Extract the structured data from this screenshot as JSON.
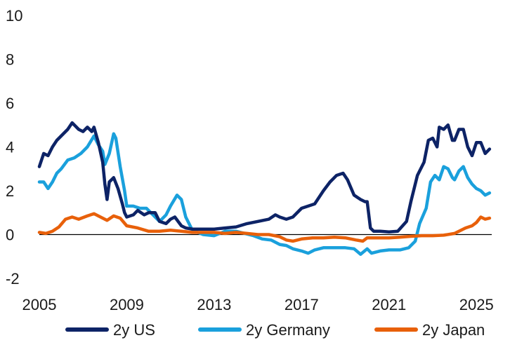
{
  "chart_data": {
    "type": "line",
    "title": "",
    "xlabel": "",
    "ylabel": "",
    "xlim": [
      2005,
      2025.7
    ],
    "ylim": [
      -2,
      10
    ],
    "x_ticks": [
      2005,
      2009,
      2013,
      2017,
      2021,
      2025
    ],
    "y_ticks": [
      -2,
      0,
      2,
      4,
      6,
      8,
      10
    ],
    "grid": false,
    "zero_line": true,
    "legend_position": "bottom",
    "series": [
      {
        "name": "2y US",
        "color": "#0d2366",
        "points": [
          [
            2005.0,
            3.1
          ],
          [
            2005.2,
            3.7
          ],
          [
            2005.4,
            3.6
          ],
          [
            2005.6,
            4.0
          ],
          [
            2005.8,
            4.3
          ],
          [
            2006.0,
            4.5
          ],
          [
            2006.3,
            4.8
          ],
          [
            2006.5,
            5.1
          ],
          [
            2006.8,
            4.8
          ],
          [
            2007.0,
            4.7
          ],
          [
            2007.2,
            4.9
          ],
          [
            2007.4,
            4.7
          ],
          [
            2007.5,
            4.9
          ],
          [
            2007.7,
            4.2
          ],
          [
            2007.9,
            3.3
          ],
          [
            2008.0,
            2.3
          ],
          [
            2008.1,
            1.6
          ],
          [
            2008.2,
            2.4
          ],
          [
            2008.4,
            2.6
          ],
          [
            2008.6,
            2.1
          ],
          [
            2008.8,
            1.4
          ],
          [
            2008.9,
            1.0
          ],
          [
            2009.0,
            0.8
          ],
          [
            2009.3,
            0.9
          ],
          [
            2009.5,
            1.1
          ],
          [
            2009.8,
            0.9
          ],
          [
            2010.0,
            1.0
          ],
          [
            2010.3,
            1.0
          ],
          [
            2010.5,
            0.6
          ],
          [
            2010.8,
            0.5
          ],
          [
            2011.0,
            0.7
          ],
          [
            2011.2,
            0.8
          ],
          [
            2011.5,
            0.4
          ],
          [
            2011.7,
            0.3
          ],
          [
            2012.0,
            0.25
          ],
          [
            2012.5,
            0.25
          ],
          [
            2013.0,
            0.25
          ],
          [
            2013.5,
            0.3
          ],
          [
            2014.0,
            0.35
          ],
          [
            2014.5,
            0.5
          ],
          [
            2015.0,
            0.6
          ],
          [
            2015.5,
            0.7
          ],
          [
            2015.8,
            0.9
          ],
          [
            2016.0,
            0.8
          ],
          [
            2016.3,
            0.7
          ],
          [
            2016.6,
            0.8
          ],
          [
            2017.0,
            1.2
          ],
          [
            2017.3,
            1.3
          ],
          [
            2017.6,
            1.4
          ],
          [
            2018.0,
            2.0
          ],
          [
            2018.3,
            2.4
          ],
          [
            2018.6,
            2.7
          ],
          [
            2018.9,
            2.8
          ],
          [
            2019.1,
            2.5
          ],
          [
            2019.4,
            1.8
          ],
          [
            2019.7,
            1.6
          ],
          [
            2019.9,
            1.5
          ],
          [
            2020.0,
            1.5
          ],
          [
            2020.15,
            0.3
          ],
          [
            2020.3,
            0.15
          ],
          [
            2020.6,
            0.15
          ],
          [
            2021.0,
            0.12
          ],
          [
            2021.4,
            0.15
          ],
          [
            2021.8,
            0.6
          ],
          [
            2022.0,
            1.5
          ],
          [
            2022.3,
            2.7
          ],
          [
            2022.6,
            3.3
          ],
          [
            2022.8,
            4.3
          ],
          [
            2023.0,
            4.4
          ],
          [
            2023.2,
            4.0
          ],
          [
            2023.3,
            4.9
          ],
          [
            2023.5,
            4.8
          ],
          [
            2023.7,
            5.0
          ],
          [
            2023.9,
            4.3
          ],
          [
            2024.0,
            4.3
          ],
          [
            2024.2,
            4.8
          ],
          [
            2024.4,
            4.8
          ],
          [
            2024.6,
            4.0
          ],
          [
            2024.8,
            3.6
          ],
          [
            2025.0,
            4.2
          ],
          [
            2025.2,
            4.2
          ],
          [
            2025.4,
            3.7
          ],
          [
            2025.6,
            3.9
          ]
        ]
      },
      {
        "name": "2y Germany",
        "color": "#1aa0dc",
        "points": [
          [
            2005.0,
            2.4
          ],
          [
            2005.2,
            2.4
          ],
          [
            2005.4,
            2.1
          ],
          [
            2005.6,
            2.4
          ],
          [
            2005.8,
            2.8
          ],
          [
            2006.0,
            3.0
          ],
          [
            2006.3,
            3.4
          ],
          [
            2006.6,
            3.5
          ],
          [
            2006.9,
            3.7
          ],
          [
            2007.2,
            4.0
          ],
          [
            2007.5,
            4.5
          ],
          [
            2007.7,
            4.1
          ],
          [
            2007.9,
            3.8
          ],
          [
            2008.0,
            3.2
          ],
          [
            2008.2,
            3.7
          ],
          [
            2008.4,
            4.6
          ],
          [
            2008.5,
            4.4
          ],
          [
            2008.7,
            3.1
          ],
          [
            2008.9,
            2.0
          ],
          [
            2009.0,
            1.3
          ],
          [
            2009.3,
            1.3
          ],
          [
            2009.6,
            1.2
          ],
          [
            2009.9,
            1.2
          ],
          [
            2010.2,
            0.9
          ],
          [
            2010.5,
            0.6
          ],
          [
            2010.8,
            0.9
          ],
          [
            2011.0,
            1.3
          ],
          [
            2011.3,
            1.8
          ],
          [
            2011.5,
            1.6
          ],
          [
            2011.7,
            0.8
          ],
          [
            2012.0,
            0.2
          ],
          [
            2012.5,
            0.0
          ],
          [
            2013.0,
            -0.05
          ],
          [
            2013.5,
            0.15
          ],
          [
            2014.0,
            0.15
          ],
          [
            2014.4,
            0.05
          ],
          [
            2014.8,
            -0.05
          ],
          [
            2015.2,
            -0.2
          ],
          [
            2015.6,
            -0.25
          ],
          [
            2016.0,
            -0.45
          ],
          [
            2016.3,
            -0.5
          ],
          [
            2016.6,
            -0.65
          ],
          [
            2017.0,
            -0.75
          ],
          [
            2017.3,
            -0.85
          ],
          [
            2017.6,
            -0.7
          ],
          [
            2018.0,
            -0.6
          ],
          [
            2018.5,
            -0.6
          ],
          [
            2019.0,
            -0.6
          ],
          [
            2019.4,
            -0.65
          ],
          [
            2019.7,
            -0.9
          ],
          [
            2020.0,
            -0.65
          ],
          [
            2020.2,
            -0.85
          ],
          [
            2020.6,
            -0.75
          ],
          [
            2021.0,
            -0.7
          ],
          [
            2021.5,
            -0.7
          ],
          [
            2021.9,
            -0.6
          ],
          [
            2022.2,
            -0.3
          ],
          [
            2022.4,
            0.5
          ],
          [
            2022.7,
            1.2
          ],
          [
            2022.9,
            2.4
          ],
          [
            2023.1,
            2.7
          ],
          [
            2023.3,
            2.5
          ],
          [
            2023.5,
            3.1
          ],
          [
            2023.7,
            3.0
          ],
          [
            2023.9,
            2.6
          ],
          [
            2024.0,
            2.5
          ],
          [
            2024.2,
            2.9
          ],
          [
            2024.4,
            3.1
          ],
          [
            2024.6,
            2.6
          ],
          [
            2024.8,
            2.3
          ],
          [
            2025.0,
            2.1
          ],
          [
            2025.2,
            2.0
          ],
          [
            2025.4,
            1.8
          ],
          [
            2025.6,
            1.9
          ]
        ]
      },
      {
        "name": "2y Japan",
        "color": "#e8600a",
        "points": [
          [
            2005.0,
            0.1
          ],
          [
            2005.3,
            0.05
          ],
          [
            2005.6,
            0.15
          ],
          [
            2005.9,
            0.35
          ],
          [
            2006.2,
            0.7
          ],
          [
            2006.5,
            0.8
          ],
          [
            2006.8,
            0.7
          ],
          [
            2007.2,
            0.85
          ],
          [
            2007.5,
            0.95
          ],
          [
            2007.8,
            0.8
          ],
          [
            2008.1,
            0.65
          ],
          [
            2008.4,
            0.85
          ],
          [
            2008.7,
            0.75
          ],
          [
            2009.0,
            0.4
          ],
          [
            2009.5,
            0.3
          ],
          [
            2010.0,
            0.15
          ],
          [
            2010.5,
            0.15
          ],
          [
            2011.0,
            0.2
          ],
          [
            2011.5,
            0.15
          ],
          [
            2012.0,
            0.1
          ],
          [
            2012.5,
            0.1
          ],
          [
            2013.0,
            0.1
          ],
          [
            2013.5,
            0.05
          ],
          [
            2014.0,
            0.1
          ],
          [
            2014.5,
            0.05
          ],
          [
            2015.0,
            0.0
          ],
          [
            2015.5,
            0.0
          ],
          [
            2016.0,
            -0.1
          ],
          [
            2016.3,
            -0.25
          ],
          [
            2016.6,
            -0.3
          ],
          [
            2017.0,
            -0.2
          ],
          [
            2017.5,
            -0.15
          ],
          [
            2018.0,
            -0.15
          ],
          [
            2018.5,
            -0.12
          ],
          [
            2019.0,
            -0.15
          ],
          [
            2019.5,
            -0.25
          ],
          [
            2019.8,
            -0.3
          ],
          [
            2020.0,
            -0.15
          ],
          [
            2020.5,
            -0.15
          ],
          [
            2021.0,
            -0.15
          ],
          [
            2021.5,
            -0.12
          ],
          [
            2022.0,
            -0.08
          ],
          [
            2022.5,
            -0.05
          ],
          [
            2023.0,
            -0.05
          ],
          [
            2023.5,
            -0.03
          ],
          [
            2024.0,
            0.05
          ],
          [
            2024.5,
            0.3
          ],
          [
            2024.8,
            0.4
          ],
          [
            2025.0,
            0.55
          ],
          [
            2025.2,
            0.8
          ],
          [
            2025.4,
            0.7
          ],
          [
            2025.6,
            0.75
          ]
        ]
      }
    ]
  }
}
